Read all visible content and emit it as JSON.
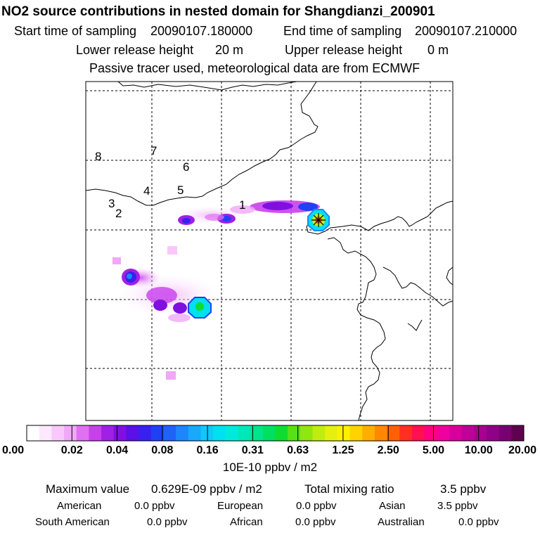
{
  "chart_data": {
    "type": "heatmap",
    "title": "NO2 source contributions in nested domain for Shangdianzi_200901",
    "sampling": {
      "start_label": "Start time of sampling",
      "start_value": "20090107.180000",
      "end_label": "End time of sampling",
      "end_value": "20090107.210000"
    },
    "release": {
      "lower_label": "Lower release height",
      "lower_value": "20 m",
      "upper_label": "Upper release height",
      "upper_value": "0 m"
    },
    "note": "Passive tracer used, meteorological data are from ECMWF",
    "map_labels": [
      "1",
      "2",
      "3",
      "4",
      "5",
      "6",
      "7",
      "8"
    ],
    "colorbar": {
      "tick_labels": [
        "0.00",
        "0.02",
        "0.04",
        "0.08",
        "0.16",
        "0.31",
        "0.63",
        "1.25",
        "2.50",
        "5.00",
        "10.00",
        "20.00"
      ],
      "units": "10E-10 ppbv / m2",
      "colors": [
        "#ffffff",
        "#fde8fe",
        "#f8c8fb",
        "#f0a8f7",
        "#e070f2",
        "#c840ec",
        "#a020e6",
        "#8010e0",
        "#5a10e6",
        "#3820ee",
        "#2040f4",
        "#1f62f8",
        "#1c86fa",
        "#18a8fc",
        "#10c8fb",
        "#00e0f0",
        "#00eadc",
        "#00e8b8",
        "#00e48c",
        "#00e060",
        "#10dc30",
        "#58e018",
        "#90e610",
        "#c0ec10",
        "#e6f010",
        "#fff000",
        "#ffd200",
        "#ffae00",
        "#ff8800",
        "#ff6000",
        "#ff3020",
        "#ff1050",
        "#ff0080",
        "#f000a0",
        "#d8009c",
        "#c00098",
        "#a80090",
        "#900088",
        "#780070",
        "#600050"
      ]
    },
    "stats": {
      "max_label": "Maximum value",
      "max_value": "0.629E-09 ppbv / m2",
      "total_label": "Total mixing ratio",
      "total_value": "3.5 ppbv",
      "regions": [
        {
          "name": "American",
          "value": "0.0 ppbv"
        },
        {
          "name": "European",
          "value": "0.0 ppbv"
        },
        {
          "name": "Asian",
          "value": "3.5 ppbv"
        },
        {
          "name": "South American",
          "value": "0.0 ppbv"
        },
        {
          "name": "African",
          "value": "0.0 ppbv"
        },
        {
          "name": "Australian",
          "value": "0.0 ppbv"
        }
      ]
    }
  }
}
